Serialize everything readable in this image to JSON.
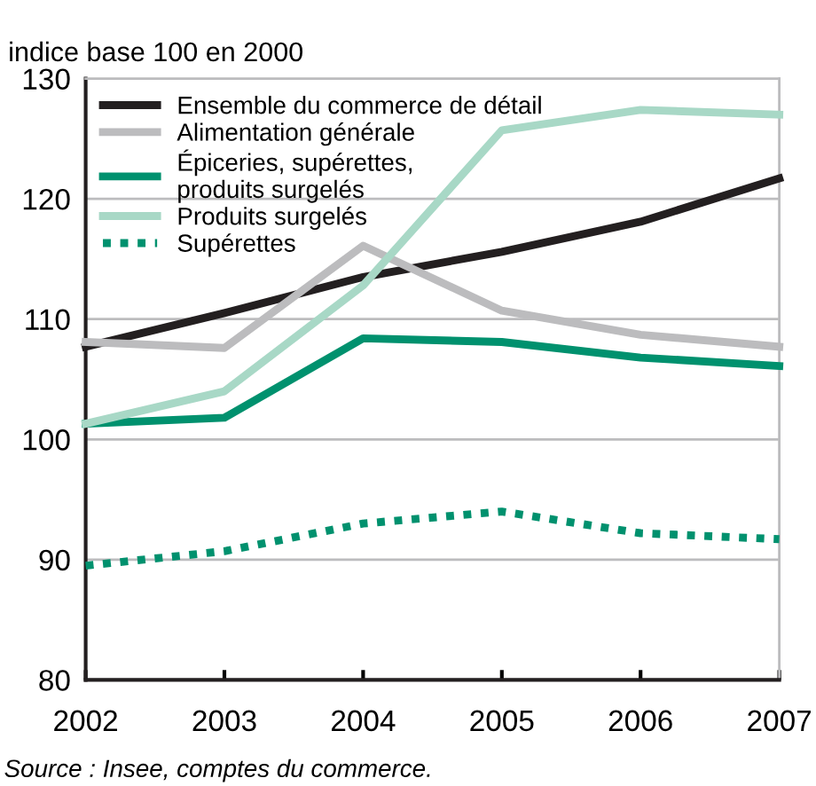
{
  "chart_data": {
    "type": "line",
    "ylabel": "indice base 100 en 2000",
    "x": [
      2002,
      2003,
      2004,
      2005,
      2006,
      2007
    ],
    "xlim": [
      2002,
      2007
    ],
    "xticks": [
      2002,
      2003,
      2004,
      2005,
      2006,
      2007
    ],
    "ylim": [
      80,
      130
    ],
    "yticks": [
      80,
      90,
      100,
      110,
      120,
      130
    ],
    "grid": "y",
    "legend": "top left",
    "marker": "none",
    "series": [
      {
        "name": "Ensemble du commerce de détail",
        "color": "#231f20",
        "values": [
          107.7,
          110.5,
          113.5,
          115.6,
          118.1,
          121.7
        ]
      },
      {
        "name": "Alimentation générale",
        "color": "#bcbcbe",
        "values": [
          108.1,
          107.6,
          116.1,
          110.7,
          108.7,
          107.7
        ]
      },
      {
        "name": "Épiceries, supérettes,\nproduits surgelés",
        "color": "#00916e",
        "values": [
          101.3,
          101.8,
          108.4,
          108.1,
          106.8,
          106.1
        ]
      },
      {
        "name": "Produits surgelés",
        "color": "#a8d8c6",
        "values": [
          101.3,
          104.0,
          112.8,
          125.7,
          127.4,
          127.0
        ]
      },
      {
        "name": "Supérettes",
        "color": "#00916e",
        "line_style": "dotted",
        "values": [
          89.5,
          90.7,
          93.0,
          94.0,
          92.2,
          91.7
        ]
      }
    ],
    "annotations": [
      "Source : Insee, comptes du commerce."
    ]
  }
}
